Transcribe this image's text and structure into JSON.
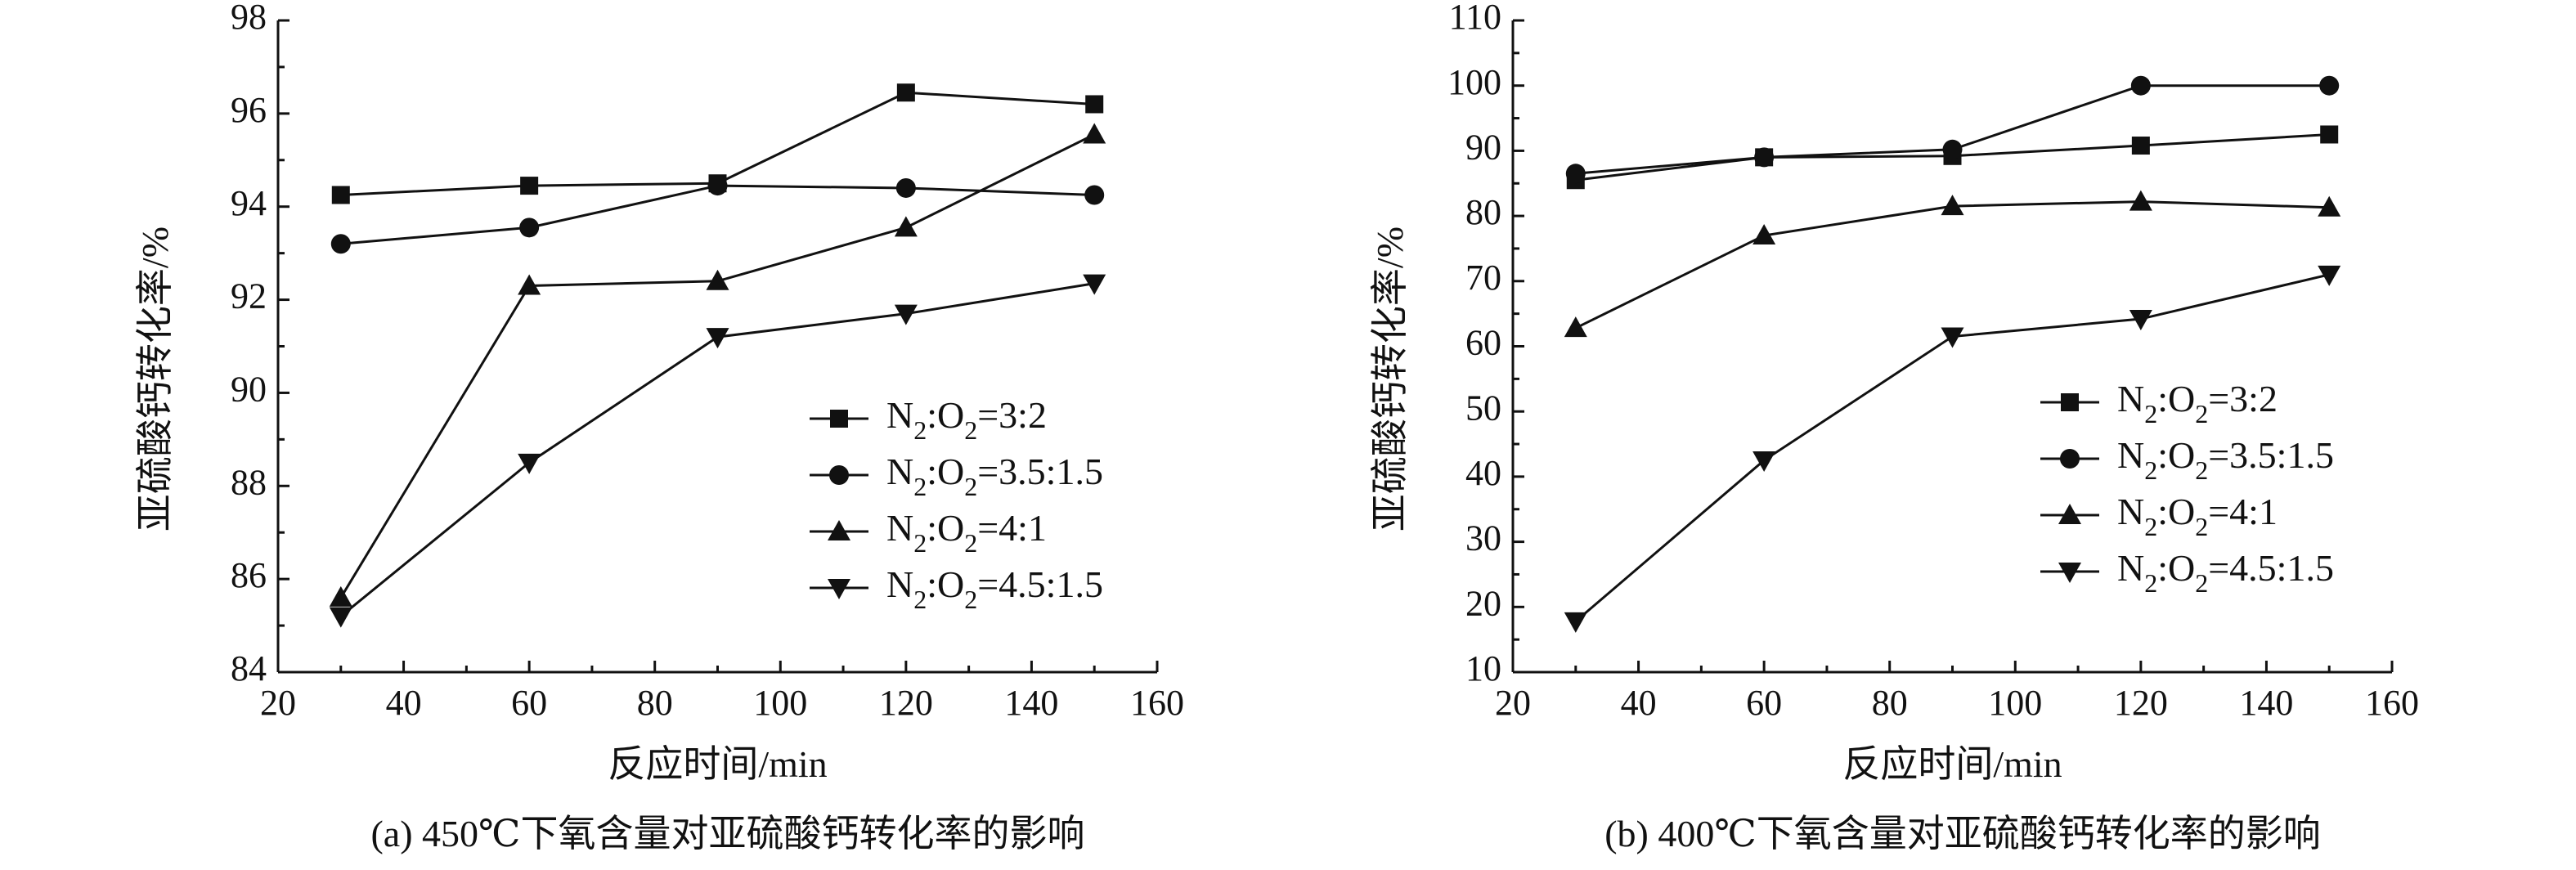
{
  "chart_data": [
    {
      "type": "line",
      "caption": "(a) 450℃下氧含量对亚硫酸钙转化率的影响",
      "xlabel": "反应时间/min",
      "ylabel": "亚硫酸钙转化率/%",
      "xlim": [
        20,
        160
      ],
      "ylim": [
        84,
        98
      ],
      "xticks": [
        20,
        40,
        60,
        80,
        100,
        120,
        140,
        160
      ],
      "yticks": [
        84,
        86,
        88,
        90,
        92,
        94,
        96,
        98
      ],
      "grid": false,
      "legend_position": "lower-right",
      "x": [
        30,
        60,
        90,
        120,
        150
      ],
      "series": [
        {
          "name": "N2:O2=3:2",
          "marker": "square",
          "values": [
            94.25,
            94.45,
            94.5,
            96.45,
            96.2
          ]
        },
        {
          "name": "N2:O2=3.5:1.5",
          "marker": "circle",
          "values": [
            93.2,
            93.55,
            94.45,
            94.4,
            94.25
          ]
        },
        {
          "name": "N2:O2=4:1",
          "marker": "triangle-up",
          "values": [
            85.6,
            92.3,
            92.4,
            93.55,
            95.55
          ]
        },
        {
          "name": "N2:O2=4.5:1.5",
          "marker": "triangle-down",
          "values": [
            85.2,
            88.5,
            91.2,
            91.7,
            92.35
          ]
        }
      ]
    },
    {
      "type": "line",
      "caption": "(b) 400℃下氧含量对亚硫酸钙转化率的影响",
      "xlabel": "反应时间/min",
      "ylabel": "亚硫酸钙转化率/%",
      "xlim": [
        20,
        160
      ],
      "ylim": [
        10,
        110
      ],
      "xticks": [
        20,
        40,
        60,
        80,
        100,
        120,
        140,
        160
      ],
      "yticks": [
        10,
        20,
        30,
        40,
        50,
        60,
        70,
        80,
        90,
        100,
        110
      ],
      "grid": false,
      "legend_position": "center-right",
      "x": [
        30,
        60,
        90,
        120,
        150
      ],
      "series": [
        {
          "name": "N2:O2=3:2",
          "marker": "square",
          "values": [
            85.5,
            89,
            89.2,
            90.8,
            92.5
          ]
        },
        {
          "name": "N2:O2=3.5:1.5",
          "marker": "circle",
          "values": [
            86.5,
            89,
            90.2,
            100,
            100
          ]
        },
        {
          "name": "N2:O2=4:1",
          "marker": "triangle-up",
          "values": [
            62.8,
            77,
            81.5,
            82.2,
            81.3
          ]
        },
        {
          "name": "N2:O2=4.5:1.5",
          "marker": "triangle-down",
          "values": [
            17.8,
            42.5,
            61.5,
            64.2,
            71
          ]
        }
      ]
    }
  ]
}
